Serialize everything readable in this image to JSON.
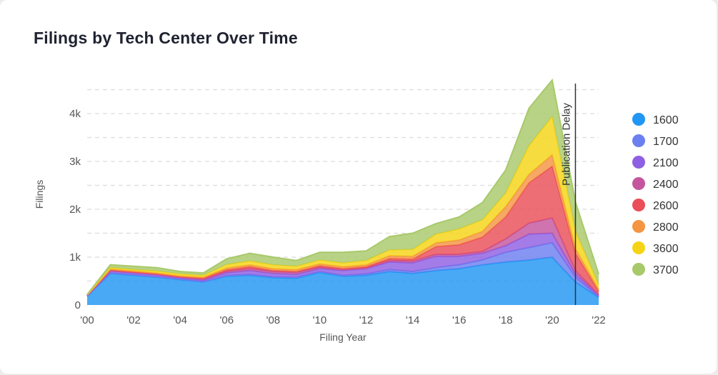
{
  "title": "Filings by Tech Center Over Time",
  "chart_data": {
    "type": "area",
    "stacked": true,
    "title": "Filings by Tech Center Over Time",
    "xlabel": "Filing Year",
    "ylabel": "Filings",
    "x": [
      2000,
      2001,
      2002,
      2003,
      2004,
      2005,
      2006,
      2007,
      2008,
      2009,
      2010,
      2011,
      2012,
      2013,
      2014,
      2015,
      2016,
      2017,
      2018,
      2019,
      2020,
      2021,
      2022
    ],
    "xlim": [
      2000,
      2022
    ],
    "ylim": [
      0,
      4600
    ],
    "xticks": [
      {
        "value": 2000,
        "label": "'00"
      },
      {
        "value": 2002,
        "label": "'02"
      },
      {
        "value": 2004,
        "label": "'04"
      },
      {
        "value": 2006,
        "label": "'06"
      },
      {
        "value": 2008,
        "label": "'08"
      },
      {
        "value": 2010,
        "label": "'10"
      },
      {
        "value": 2012,
        "label": "'12"
      },
      {
        "value": 2014,
        "label": "'14"
      },
      {
        "value": 2016,
        "label": "'16"
      },
      {
        "value": 2018,
        "label": "'18"
      },
      {
        "value": 2020,
        "label": "'20"
      },
      {
        "value": 2022,
        "label": "'22"
      }
    ],
    "yticks": [
      {
        "value": 0,
        "label": "0"
      },
      {
        "value": 1000,
        "label": "1k"
      },
      {
        "value": 2000,
        "label": "2k"
      },
      {
        "value": 3000,
        "label": "3k"
      },
      {
        "value": 4000,
        "label": "4k"
      }
    ],
    "grid": true,
    "legend_position": "right",
    "series": [
      {
        "name": "1600",
        "color": "#2196f3",
        "values": [
          180,
          660,
          620,
          580,
          530,
          480,
          600,
          620,
          570,
          560,
          680,
          600,
          620,
          700,
          660,
          720,
          760,
          840,
          900,
          940,
          1000,
          480,
          160
        ]
      },
      {
        "name": "1700",
        "color": "#6c7ff0",
        "values": [
          5,
          10,
          10,
          10,
          10,
          10,
          15,
          20,
          20,
          20,
          20,
          20,
          30,
          40,
          40,
          60,
          80,
          100,
          200,
          260,
          300,
          100,
          15
        ]
      },
      {
        "name": "2100",
        "color": "#8f5fe3",
        "values": [
          10,
          40,
          40,
          40,
          30,
          30,
          60,
          80,
          70,
          60,
          60,
          100,
          110,
          160,
          180,
          240,
          180,
          140,
          140,
          280,
          200,
          70,
          20
        ]
      },
      {
        "name": "2400",
        "color": "#c4569e",
        "values": [
          5,
          10,
          10,
          10,
          10,
          20,
          30,
          40,
          40,
          40,
          30,
          20,
          10,
          30,
          40,
          40,
          40,
          40,
          140,
          230,
          320,
          70,
          20
        ]
      },
      {
        "name": "2600",
        "color": "#ea4e58",
        "values": [
          5,
          10,
          10,
          10,
          10,
          20,
          30,
          40,
          20,
          20,
          30,
          20,
          30,
          40,
          40,
          160,
          200,
          300,
          460,
          840,
          1080,
          360,
          70
        ]
      },
      {
        "name": "2800",
        "color": "#f49542",
        "values": [
          5,
          20,
          20,
          20,
          20,
          20,
          40,
          40,
          40,
          40,
          40,
          40,
          40,
          60,
          60,
          80,
          100,
          120,
          220,
          180,
          240,
          100,
          40
        ]
      },
      {
        "name": "3600",
        "color": "#f5d416",
        "values": [
          5,
          30,
          30,
          40,
          40,
          40,
          70,
          80,
          80,
          70,
          80,
          80,
          90,
          120,
          140,
          180,
          230,
          240,
          280,
          600,
          800,
          360,
          100
        ]
      },
      {
        "name": "3700",
        "color": "#a8c96a",
        "values": [
          5,
          60,
          70,
          70,
          50,
          50,
          120,
          160,
          160,
          120,
          160,
          220,
          200,
          280,
          340,
          220,
          250,
          360,
          480,
          780,
          760,
          610,
          220
        ]
      }
    ],
    "annotations": [
      {
        "type": "vline",
        "x": 2021,
        "label": "Publication Delay"
      }
    ]
  }
}
